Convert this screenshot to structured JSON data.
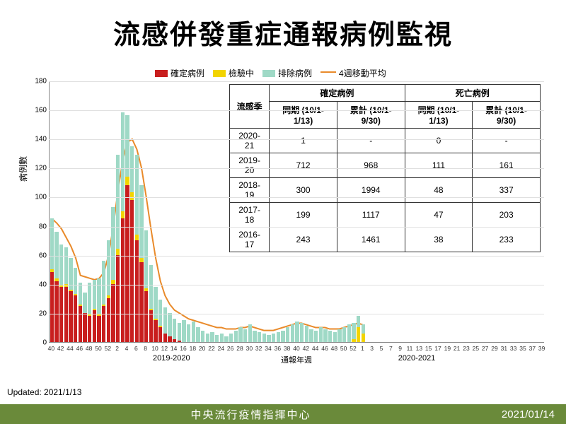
{
  "title": "流感併發重症通報病例監視",
  "updated_label": "Updated: 2021/1/13",
  "footer": {
    "org": "中央流行疫情指揮中心",
    "date": "2021/01/14"
  },
  "legend": [
    {
      "label": "確定病例",
      "color": "#c81e1e",
      "type": "box"
    },
    {
      "label": "檢驗中",
      "color": "#f2d400",
      "type": "box"
    },
    {
      "label": "排除病例",
      "color": "#9fd9c6",
      "type": "box"
    },
    {
      "label": "4週移動平均",
      "color": "#e98a2a",
      "type": "line"
    }
  ],
  "chart": {
    "type": "stacked-bar-with-line",
    "ylabel": "病例數",
    "ylim": [
      0,
      180
    ],
    "ytick_step": 20,
    "xlabel": "通報年週",
    "season_labels": [
      {
        "text": "2019-2020",
        "at_week_index": 26
      },
      {
        "text": "2020-2021",
        "at_week_index": 78
      }
    ],
    "background": "#ffffff",
    "grid_color": "#e0e0e0",
    "weeks": [
      40,
      41,
      42,
      43,
      44,
      45,
      46,
      47,
      48,
      49,
      50,
      51,
      52,
      1,
      2,
      3,
      4,
      5,
      6,
      7,
      8,
      9,
      10,
      11,
      12,
      13,
      14,
      15,
      16,
      17,
      18,
      19,
      20,
      21,
      22,
      23,
      24,
      25,
      26,
      27,
      28,
      29,
      30,
      31,
      32,
      33,
      34,
      35,
      36,
      37,
      38,
      39,
      40,
      41,
      42,
      43,
      44,
      45,
      46,
      47,
      48,
      49,
      50,
      51,
      52,
      53,
      1,
      2,
      3,
      4,
      5,
      6,
      7,
      8,
      9,
      10,
      11,
      12,
      13,
      14,
      15,
      16,
      17,
      18,
      19,
      20,
      21,
      22,
      23,
      24,
      25,
      26,
      27,
      28,
      29,
      30,
      31,
      32,
      33,
      34,
      35,
      36,
      37,
      38,
      39
    ],
    "xtick_every": 2,
    "confirmed": [
      48,
      42,
      38,
      38,
      35,
      32,
      25,
      20,
      18,
      22,
      18,
      25,
      30,
      40,
      60,
      85,
      108,
      98,
      70,
      55,
      35,
      22,
      15,
      10,
      6,
      4,
      2,
      1,
      0,
      0,
      0,
      0,
      0,
      0,
      0,
      0,
      0,
      0,
      0,
      0,
      0,
      0,
      0,
      0,
      0,
      0,
      0,
      0,
      0,
      0,
      0,
      0,
      0,
      0,
      0,
      0,
      0,
      0,
      0,
      0,
      0,
      0,
      0,
      0,
      0,
      0,
      0,
      0,
      0,
      0,
      0,
      0,
      0,
      0,
      0,
      0,
      0,
      0,
      0,
      0,
      0,
      0,
      0,
      0,
      0,
      0,
      0,
      0,
      0,
      0,
      0,
      0,
      0,
      0,
      0,
      0,
      0,
      0,
      0,
      0,
      0,
      0,
      0,
      0,
      0
    ],
    "pending": [
      2,
      2,
      1,
      2,
      1,
      1,
      1,
      0,
      1,
      1,
      1,
      1,
      2,
      3,
      4,
      5,
      6,
      5,
      4,
      3,
      2,
      1,
      1,
      1,
      0,
      0,
      0,
      0,
      0,
      0,
      0,
      0,
      0,
      0,
      0,
      0,
      0,
      0,
      0,
      0,
      0,
      0,
      0,
      0,
      0,
      0,
      0,
      0,
      0,
      0,
      0,
      0,
      0,
      0,
      0,
      0,
      0,
      0,
      0,
      0,
      0,
      0,
      0,
      0,
      2,
      10,
      6,
      0,
      0,
      0,
      0,
      0,
      0,
      0,
      0,
      0,
      0,
      0,
      0,
      0,
      0,
      0,
      0,
      0,
      0,
      0,
      0,
      0,
      0,
      0,
      0,
      0,
      0,
      0,
      0,
      0,
      0,
      0,
      0,
      0,
      0,
      0,
      0,
      0,
      0
    ],
    "excluded": [
      35,
      32,
      28,
      25,
      22,
      18,
      15,
      14,
      22,
      20,
      25,
      30,
      38,
      50,
      65,
      68,
      42,
      32,
      55,
      50,
      40,
      30,
      22,
      18,
      18,
      16,
      14,
      12,
      15,
      12,
      14,
      10,
      8,
      6,
      7,
      5,
      6,
      4,
      6,
      8,
      10,
      9,
      12,
      8,
      7,
      6,
      5,
      6,
      7,
      8,
      10,
      12,
      14,
      13,
      11,
      9,
      8,
      10,
      9,
      8,
      7,
      9,
      10,
      12,
      11,
      8,
      6,
      0,
      0,
      0,
      0,
      0,
      0,
      0,
      0,
      0,
      0,
      0,
      0,
      0,
      0,
      0,
      0,
      0,
      0,
      0,
      0,
      0,
      0,
      0,
      0,
      0,
      0,
      0,
      0,
      0,
      0,
      0,
      0,
      0,
      0,
      0,
      0,
      0,
      0
    ],
    "moving_avg": [
      85,
      82,
      78,
      72,
      66,
      58,
      46,
      45,
      44,
      43,
      44,
      48,
      60,
      80,
      105,
      125,
      138,
      140,
      133,
      120,
      100,
      78,
      58,
      42,
      32,
      26,
      22,
      20,
      18,
      16,
      15,
      14,
      13,
      12,
      11,
      10,
      10,
      9,
      9,
      9,
      10,
      10,
      11,
      10,
      9,
      8,
      8,
      8,
      9,
      10,
      11,
      12,
      13,
      13,
      12,
      11,
      10,
      10,
      10,
      9,
      9,
      9,
      10,
      11,
      12,
      13,
      12,
      null,
      null,
      null,
      null,
      null,
      null,
      null,
      null,
      null,
      null,
      null,
      null,
      null,
      null,
      null,
      null,
      null,
      null,
      null,
      null,
      null,
      null,
      null,
      null,
      null,
      null,
      null,
      null,
      null,
      null,
      null,
      null,
      null,
      null,
      null,
      null,
      null,
      null
    ]
  },
  "table": {
    "header_season": "流感季",
    "group1": "確定病例",
    "group2": "死亡病例",
    "sub_same": "同期\n(10/1-1/13)",
    "sub_cum": "累計\n(10/1-9/30)",
    "rows": [
      {
        "season": "2020-21",
        "conf_same": "1",
        "conf_cum": "-",
        "death_same": "0",
        "death_cum": "-"
      },
      {
        "season": "2019-20",
        "conf_same": "712",
        "conf_cum": "968",
        "death_same": "111",
        "death_cum": "161"
      },
      {
        "season": "2018-19",
        "conf_same": "300",
        "conf_cum": "1994",
        "death_same": "48",
        "death_cum": "337"
      },
      {
        "season": "2017-18",
        "conf_same": "199",
        "conf_cum": "1117",
        "death_same": "47",
        "death_cum": "203"
      },
      {
        "season": "2016-17",
        "conf_same": "243",
        "conf_cum": "1461",
        "death_same": "38",
        "death_cum": "233"
      }
    ]
  }
}
